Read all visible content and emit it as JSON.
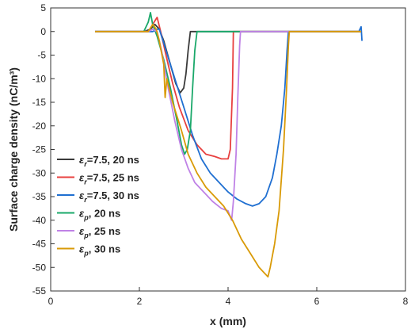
{
  "chart_data": {
    "type": "line",
    "xlabel": "x (mm)",
    "ylabel": "Surface charge density (nC/m³)",
    "xlim": [
      0,
      8
    ],
    "ylim": [
      -55,
      5
    ],
    "xticks": [
      0,
      2,
      4,
      6,
      8
    ],
    "yticks": [
      5,
      0,
      -5,
      -10,
      -15,
      -20,
      -25,
      -30,
      -35,
      -40,
      -45,
      -50,
      -55
    ],
    "grid": false,
    "legend_position": "left",
    "series": [
      {
        "name": "εr=7.5, 20 ns",
        "symbol": "r",
        "tail": "=7.5, 20 ns",
        "color": "#3a3a3a",
        "points": [
          [
            1.0,
            0
          ],
          [
            2.1,
            0
          ],
          [
            2.25,
            0.5
          ],
          [
            2.35,
            1.5
          ],
          [
            2.45,
            0.5
          ],
          [
            2.55,
            -2
          ],
          [
            2.7,
            -7
          ],
          [
            2.82,
            -11
          ],
          [
            2.92,
            -13
          ],
          [
            3.0,
            -12
          ],
          [
            3.05,
            -9
          ],
          [
            3.1,
            -4
          ],
          [
            3.15,
            0
          ],
          [
            7.0,
            0
          ]
        ]
      },
      {
        "name": "εr=7.5, 25 ns",
        "symbol": "r",
        "tail": "=7.5, 25 ns",
        "color": "#e8403f",
        "points": [
          [
            1.0,
            0
          ],
          [
            2.2,
            0
          ],
          [
            2.3,
            1.5
          ],
          [
            2.4,
            3
          ],
          [
            2.48,
            0
          ],
          [
            2.6,
            -5
          ],
          [
            2.75,
            -11
          ],
          [
            2.9,
            -16
          ],
          [
            3.1,
            -21
          ],
          [
            3.3,
            -24
          ],
          [
            3.5,
            -26
          ],
          [
            3.7,
            -26.5
          ],
          [
            3.85,
            -27
          ],
          [
            4.0,
            -27
          ],
          [
            4.05,
            -25
          ],
          [
            4.1,
            -12
          ],
          [
            4.12,
            0
          ],
          [
            7.0,
            0
          ]
        ]
      },
      {
        "name": "εr=7.5, 30 ns",
        "symbol": "r",
        "tail": "=7.5, 30 ns",
        "color": "#1f6fd1",
        "points": [
          [
            1.0,
            0
          ],
          [
            2.3,
            0
          ],
          [
            2.4,
            0.5
          ],
          [
            2.45,
            0.5
          ],
          [
            2.6,
            -4
          ],
          [
            2.8,
            -10
          ],
          [
            3.0,
            -16
          ],
          [
            3.2,
            -22
          ],
          [
            3.4,
            -27
          ],
          [
            3.6,
            -30
          ],
          [
            3.8,
            -32
          ],
          [
            4.0,
            -34
          ],
          [
            4.2,
            -35.5
          ],
          [
            4.4,
            -36.5
          ],
          [
            4.55,
            -37
          ],
          [
            4.7,
            -36.5
          ],
          [
            4.85,
            -35
          ],
          [
            5.0,
            -31
          ],
          [
            5.1,
            -26
          ],
          [
            5.2,
            -20
          ],
          [
            5.28,
            -12
          ],
          [
            5.33,
            -4
          ],
          [
            5.36,
            0
          ],
          [
            6.95,
            0
          ],
          [
            7.0,
            1
          ],
          [
            7.02,
            -2
          ]
        ]
      },
      {
        "name": "εp, 20 ns",
        "symbol": "p",
        "tail": ", 20 ns",
        "color": "#1aa86a",
        "points": [
          [
            1.0,
            0
          ],
          [
            2.1,
            0
          ],
          [
            2.2,
            2
          ],
          [
            2.25,
            4
          ],
          [
            2.3,
            1.5
          ],
          [
            2.4,
            -1
          ],
          [
            2.55,
            -6
          ],
          [
            2.7,
            -12
          ],
          [
            2.85,
            -19
          ],
          [
            2.95,
            -24
          ],
          [
            3.02,
            -26
          ],
          [
            3.08,
            -25
          ],
          [
            3.15,
            -21
          ],
          [
            3.2,
            -12
          ],
          [
            3.25,
            -4
          ],
          [
            3.3,
            0
          ],
          [
            7.0,
            0
          ]
        ]
      },
      {
        "name": "εp, 25 ns",
        "symbol": "p",
        "tail": ", 25 ns",
        "color": "#bf82e6",
        "points": [
          [
            1.0,
            0
          ],
          [
            2.2,
            0
          ],
          [
            2.3,
            0.5
          ],
          [
            2.4,
            0
          ],
          [
            2.5,
            -4
          ],
          [
            2.65,
            -12
          ],
          [
            2.8,
            -19
          ],
          [
            2.95,
            -25
          ],
          [
            3.1,
            -29
          ],
          [
            3.25,
            -32
          ],
          [
            3.45,
            -34
          ],
          [
            3.65,
            -36
          ],
          [
            3.85,
            -37.5
          ],
          [
            4.0,
            -38
          ],
          [
            4.08,
            -40
          ],
          [
            4.12,
            -36
          ],
          [
            4.18,
            -26
          ],
          [
            4.22,
            -14
          ],
          [
            4.26,
            -3
          ],
          [
            4.28,
            0
          ],
          [
            7.0,
            0
          ]
        ]
      },
      {
        "name": "εp, 30 ns",
        "symbol": "p",
        "tail": ", 30 ns",
        "color": "#d99a07",
        "points": [
          [
            1.0,
            0
          ],
          [
            2.2,
            0
          ],
          [
            2.3,
            1.5
          ],
          [
            2.38,
            0.5
          ],
          [
            2.45,
            -2
          ],
          [
            2.55,
            -7
          ],
          [
            2.58,
            -14
          ],
          [
            2.62,
            -10
          ],
          [
            2.75,
            -15
          ],
          [
            2.95,
            -21
          ],
          [
            3.1,
            -26
          ],
          [
            3.3,
            -30
          ],
          [
            3.5,
            -33
          ],
          [
            3.7,
            -35
          ],
          [
            3.9,
            -37
          ],
          [
            4.1,
            -40
          ],
          [
            4.3,
            -44
          ],
          [
            4.5,
            -47
          ],
          [
            4.7,
            -50
          ],
          [
            4.8,
            -51
          ],
          [
            4.9,
            -52
          ],
          [
            4.95,
            -50
          ],
          [
            5.05,
            -45
          ],
          [
            5.15,
            -38
          ],
          [
            5.25,
            -25
          ],
          [
            5.32,
            -12
          ],
          [
            5.36,
            -3
          ],
          [
            5.38,
            0
          ],
          [
            7.0,
            0
          ]
        ]
      }
    ]
  }
}
